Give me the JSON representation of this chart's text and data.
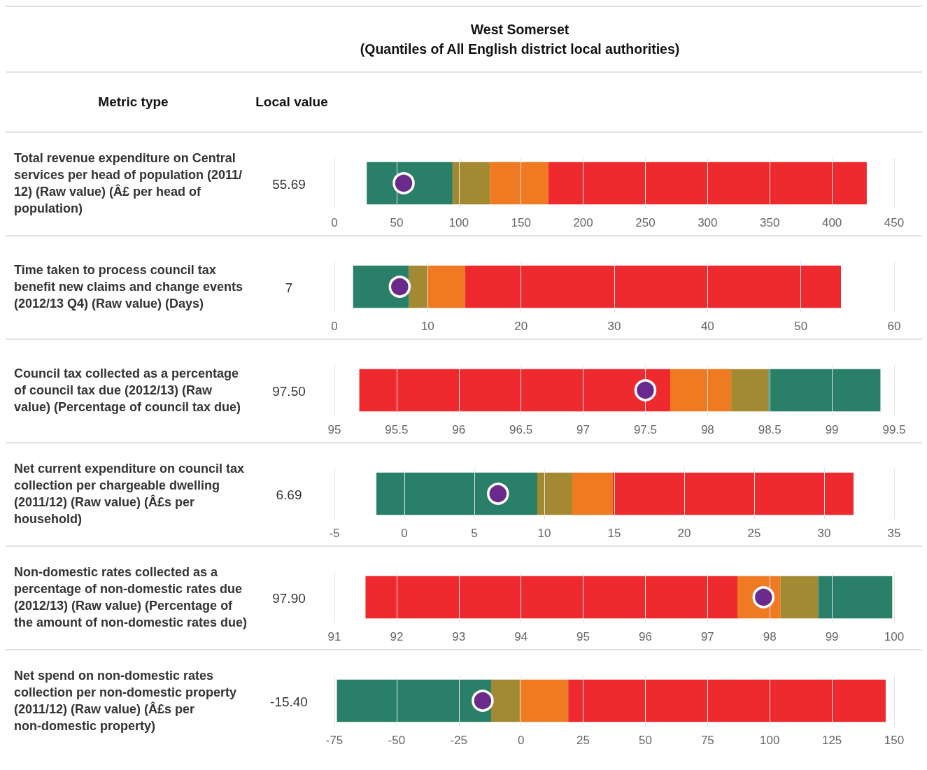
{
  "chart_data": [
    {
      "type": "bar",
      "orientation": "horizontal",
      "annotations": [
        "55.69",
        "West Somerset\n(Quantiles of All English district local authorities)",
        "Metric type",
        "Local value"
      ],
      "categories": [
        "Total revenue expenditure on Central services per head of population (2011/12) (Raw value) (Â£ per head of population)"
      ],
      "xlim": [
        0,
        450
      ],
      "xticks": [
        0,
        50,
        100,
        150,
        200,
        250,
        300,
        350,
        400,
        450
      ],
      "grid": "x",
      "series": [
        {
          "color": "#2a7f68",
          "base": [
            26
          ],
          "values": [
            69
          ]
        },
        {
          "color": "#a38a32",
          "base": [
            95
          ],
          "values": [
            30
          ]
        },
        {
          "color": "#f07a22",
          "base": [
            125
          ],
          "values": [
            47
          ]
        },
        {
          "color": "#ee2a2f",
          "base": [
            172
          ],
          "values": [
            256
          ]
        },
        {
          "type": "scatter",
          "color": "#6a2a8c",
          "values": [
            55.69
          ],
          "marker": "circle"
        }
      ]
    },
    {
      "type": "bar",
      "orientation": "horizontal",
      "annotations": [
        "7"
      ],
      "categories": [
        "Time taken to process council tax benefit new claims and change events (2012/13 Q4) (Raw value) (Days)"
      ],
      "xlim": [
        0,
        60
      ],
      "xticks": [
        0,
        10,
        20,
        30,
        40,
        50,
        60
      ],
      "grid": "x",
      "series": [
        {
          "color": "#2a7f68",
          "base": [
            2
          ],
          "values": [
            6
          ]
        },
        {
          "color": "#a38a32",
          "base": [
            8
          ],
          "values": [
            2
          ]
        },
        {
          "color": "#f07a22",
          "base": [
            10
          ],
          "values": [
            4
          ]
        },
        {
          "color": "#ee2a2f",
          "base": [
            14
          ],
          "values": [
            40.3
          ]
        },
        {
          "type": "scatter",
          "color": "#6a2a8c",
          "values": [
            7
          ],
          "marker": "circle"
        }
      ]
    },
    {
      "type": "bar",
      "orientation": "horizontal",
      "annotations": [
        "97.50"
      ],
      "categories": [
        "Council tax collected as a percentage of council tax due (2012/13) (Raw value) (Percentage of council tax due)"
      ],
      "xlim": [
        95,
        99.5
      ],
      "xticks": [
        95,
        95.5,
        96,
        96.5,
        97,
        97.5,
        98,
        98.5,
        99,
        99.5
      ],
      "grid": "x",
      "series": [
        {
          "color": "#ee2a2f",
          "base": [
            95.2
          ],
          "values": [
            2.5
          ]
        },
        {
          "color": "#f07a22",
          "base": [
            97.7
          ],
          "values": [
            0.49
          ]
        },
        {
          "color": "#a38a32",
          "base": [
            98.19
          ],
          "values": [
            0.3
          ]
        },
        {
          "color": "#2a7f68",
          "base": [
            98.49
          ],
          "values": [
            0.9
          ]
        },
        {
          "type": "scatter",
          "color": "#6a2a8c",
          "values": [
            97.5
          ],
          "marker": "circle"
        }
      ]
    },
    {
      "type": "bar",
      "orientation": "horizontal",
      "annotations": [
        "6.69"
      ],
      "categories": [
        "Net current expenditure on council tax collection per chargeable dwelling (2011/12) (Raw value) (Â£s per household)"
      ],
      "xlim": [
        -5,
        35
      ],
      "xticks": [
        -5,
        0,
        5,
        10,
        15,
        20,
        25,
        30,
        35
      ],
      "grid": "x",
      "series": [
        {
          "color": "#2a7f68",
          "base": [
            -2
          ],
          "values": [
            11.5
          ]
        },
        {
          "color": "#a38a32",
          "base": [
            9.5
          ],
          "values": [
            2.5
          ]
        },
        {
          "color": "#f07a22",
          "base": [
            12
          ],
          "values": [
            2.9
          ]
        },
        {
          "color": "#ee2a2f",
          "base": [
            14.9
          ],
          "values": [
            17.2
          ]
        },
        {
          "type": "scatter",
          "color": "#6a2a8c",
          "values": [
            6.69
          ],
          "marker": "circle"
        }
      ]
    },
    {
      "type": "bar",
      "orientation": "horizontal",
      "annotations": [
        "97.90"
      ],
      "categories": [
        "Non-domestic rates collected as a percentage of non-domestic rates due (2012/13) (Raw value) (Percentage of the amount of non-domestic rates due)"
      ],
      "xlim": [
        91,
        100
      ],
      "xticks": [
        91,
        92,
        93,
        94,
        95,
        96,
        97,
        98,
        99,
        100
      ],
      "grid": "x",
      "series": [
        {
          "color": "#ee2a2f",
          "base": [
            91.5
          ],
          "values": [
            5.98
          ]
        },
        {
          "color": "#f07a22",
          "base": [
            97.48
          ],
          "values": [
            0.69
          ]
        },
        {
          "color": "#a38a32",
          "base": [
            98.17
          ],
          "values": [
            0.61
          ]
        },
        {
          "color": "#2a7f68",
          "base": [
            98.78
          ],
          "values": [
            1.19
          ]
        },
        {
          "type": "scatter",
          "color": "#6a2a8c",
          "values": [
            97.9
          ],
          "marker": "circle"
        }
      ]
    },
    {
      "type": "bar",
      "orientation": "horizontal",
      "annotations": [
        "-15.40"
      ],
      "categories": [
        "Net spend on non-domestic rates collection per non-domestic property (2011/12) (Raw value) (Â£s per non-domestic property)"
      ],
      "xlim": [
        -75,
        150
      ],
      "xticks": [
        -75,
        -50,
        -25,
        0,
        25,
        50,
        75,
        100,
        125,
        150
      ],
      "grid": "x",
      "series": [
        {
          "color": "#2a7f68",
          "base": [
            -74
          ],
          "values": [
            62
          ]
        },
        {
          "color": "#a38a32",
          "base": [
            -12
          ],
          "values": [
            11.5
          ]
        },
        {
          "color": "#f07a22",
          "base": [
            -0.5
          ],
          "values": [
            19.5
          ]
        },
        {
          "color": "#ee2a2f",
          "base": [
            19
          ],
          "values": [
            127.6
          ]
        },
        {
          "type": "scatter",
          "color": "#6a2a8c",
          "values": [
            -15.4
          ],
          "marker": "circle"
        }
      ]
    }
  ]
}
